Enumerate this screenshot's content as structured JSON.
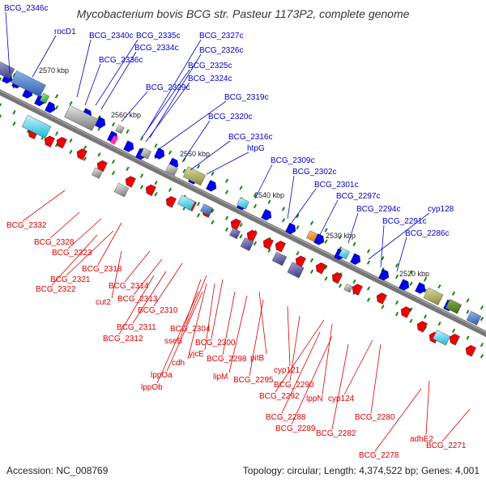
{
  "title": "Mycobacterium bovis BCG str. Pasteur 1173P2, complete genome",
  "footer": {
    "accession": "Accession: NC_008769",
    "topology": "Topology: circular; Length: 4,374,522 bp; Genes: 4,001"
  },
  "scale_ticks": [
    "2570 kbp",
    "2560 kbp",
    "2550 kbp",
    "2540 kbp",
    "2530 kbp",
    "2520 kbp"
  ],
  "colors": {
    "forward_label": "#0000cc",
    "reverse_label": "#dd0000",
    "forward_gene": "#0000ee",
    "reverse_gene": "#ee0000",
    "backbone": "#777777",
    "tick_green": "#118811"
  },
  "forward_genes": [
    "BCG_2346c",
    "rocD1",
    "BCG_2340c",
    "BCG_2335c",
    "BCG_2327c",
    "BCG_2334c",
    "BCG_2326c",
    "BCG_2336c",
    "BCG_2325c",
    "BCG_2324c",
    "BCG_2329c",
    "BCG_2319c",
    "BCG_2320c",
    "BCG_2316c",
    "htpG",
    "BCG_2309c",
    "BCG_2302c",
    "BCG_2301c",
    "BCG_2297c",
    "BCG_2294c",
    "cyp128",
    "BCG_2291c",
    "BCG_2286c"
  ],
  "reverse_genes": [
    "BCG_2332",
    "BCG_2328",
    "BCG_2323",
    "BCG_2318",
    "BCG_2321",
    "BCG_2322",
    "BCG_2314",
    "cut2",
    "BCG_2313",
    "BCG_2310",
    "BCG_2311",
    "BCG_2312",
    "BCG_2304",
    "sseB",
    "BCG_2300",
    "cdh",
    "yjcE",
    "BCG_2298",
    "pitB",
    "lppOa",
    "lppOb",
    "lipM",
    "BCG_2295",
    "cyp121",
    "BCG_2290",
    "BCG_2292",
    "lppN",
    "cyp124",
    "BCG_2288",
    "BCG_2289",
    "BCG_2280",
    "BCG_2282",
    "adhE2",
    "BCG_2278",
    "BCG_2271"
  ]
}
